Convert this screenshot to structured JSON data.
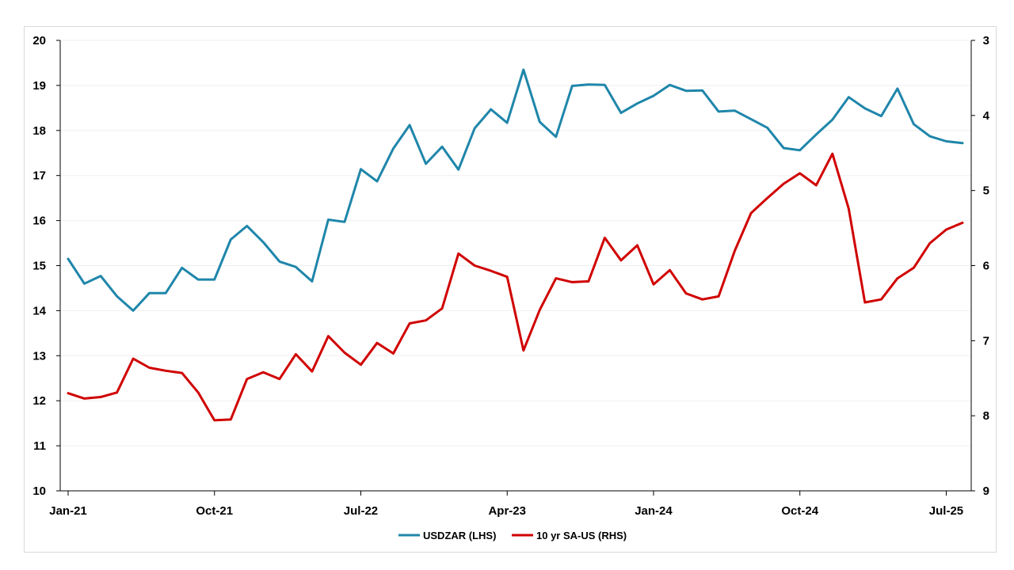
{
  "chart_data": {
    "type": "line",
    "title": "",
    "x": [
      "Jan-21",
      "Feb-21",
      "Mar-21",
      "Apr-21",
      "May-21",
      "Jun-21",
      "Jul-21",
      "Aug-21",
      "Sep-21",
      "Oct-21",
      "Nov-21",
      "Dec-21",
      "Jan-22",
      "Feb-22",
      "Mar-22",
      "Apr-22",
      "May-22",
      "Jun-22",
      "Jul-22",
      "Aug-22",
      "Sep-22",
      "Oct-22",
      "Nov-22",
      "Dec-22",
      "Jan-23",
      "Feb-23",
      "Mar-23",
      "Apr-23",
      "May-23",
      "Jun-23",
      "Jul-23",
      "Aug-23",
      "Sep-23",
      "Oct-23",
      "Nov-23",
      "Dec-23",
      "Jan-24",
      "Feb-24",
      "Mar-24",
      "Apr-24",
      "May-24",
      "Jun-24",
      "Jul-24",
      "Aug-24",
      "Sep-24",
      "Oct-24",
      "Nov-24",
      "Dec-24",
      "Jan-25",
      "Feb-25",
      "Mar-25",
      "Apr-25",
      "May-25",
      "Jun-25",
      "Jul-25",
      "Aug-25"
    ],
    "x_tick_labels": [
      "Jan-21",
      "Oct-21",
      "Jul-22",
      "Apr-23",
      "Jan-24",
      "Oct-24",
      "Jul-25"
    ],
    "x_tick_indices": [
      0,
      9,
      18,
      27,
      36,
      45,
      54
    ],
    "y_left": {
      "label": "",
      "ylim": [
        10,
        20
      ],
      "ticks": [
        10,
        11,
        12,
        13,
        14,
        15,
        16,
        17,
        18,
        19,
        20
      ]
    },
    "y_right": {
      "label": "",
      "ylim": [
        3,
        9
      ],
      "inverted": true,
      "ticks": [
        3,
        4,
        5,
        6,
        7,
        8,
        9
      ]
    },
    "grid": true,
    "legend_position": "bottom",
    "series": [
      {
        "name": "USDZAR (LHS)",
        "axis": "left",
        "color": "#1f86aa",
        "values": [
          15.15,
          14.6,
          14.77,
          14.32,
          14.0,
          14.39,
          14.39,
          14.95,
          14.69,
          14.69,
          15.58,
          15.88,
          15.52,
          15.09,
          14.97,
          14.65,
          16.02,
          15.97,
          17.14,
          16.87,
          17.6,
          18.12,
          17.26,
          17.64,
          17.13,
          18.05,
          18.47,
          18.17,
          19.35,
          18.19,
          17.86,
          18.99,
          19.02,
          19.01,
          18.39,
          18.6,
          18.77,
          19.01,
          18.88,
          18.89,
          18.42,
          18.44,
          18.25,
          18.06,
          17.61,
          17.56,
          17.91,
          18.24,
          18.74,
          18.49,
          18.32,
          18.93,
          18.14,
          17.87,
          17.76,
          17.72
        ]
      },
      {
        "name": "10 yr SA-US (RHS)",
        "axis": "right",
        "color": "#d00000",
        "values": [
          7.7,
          7.77,
          7.75,
          7.69,
          7.24,
          7.36,
          7.4,
          7.43,
          7.69,
          8.06,
          8.05,
          7.51,
          7.42,
          7.51,
          7.18,
          7.41,
          6.94,
          7.16,
          7.32,
          7.03,
          7.17,
          6.77,
          6.73,
          6.57,
          5.84,
          6.0,
          6.07,
          6.15,
          7.13,
          6.59,
          6.17,
          6.22,
          6.21,
          5.63,
          5.93,
          5.73,
          6.25,
          6.06,
          6.37,
          6.45,
          6.41,
          5.8,
          5.3,
          5.1,
          4.91,
          4.77,
          4.93,
          4.51,
          5.24,
          6.49,
          6.45,
          6.17,
          6.03,
          5.7,
          5.52,
          5.43
        ]
      }
    ]
  }
}
